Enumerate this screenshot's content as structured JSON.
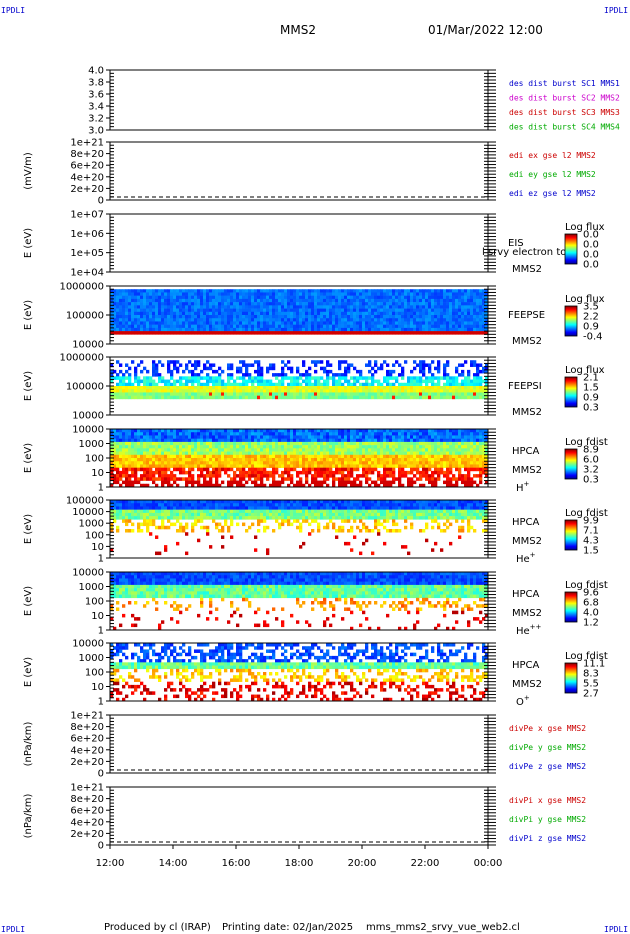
{
  "header": {
    "corner_left": "IPDLI",
    "corner_right": "IPDLI",
    "mission": "MMS2",
    "datetime": "01/Mar/2022 12:00"
  },
  "footer": {
    "produced_by": "Produced by cl (IRAP)",
    "printing_date": "Printing date: 02/Jan/2025",
    "filename": "mms_mms2_srvy_vue_web2.cl",
    "corner_left": "IPDLI",
    "corner_right": "IPDLI"
  },
  "chart_data": [
    {
      "type": "line",
      "panel": "des-dist",
      "yticks": [
        "4.0",
        "3.8",
        "3.6",
        "3.4",
        "3.2",
        "3.0"
      ],
      "ylabel": "",
      "series": [
        {
          "name": "des dist burst SC1 MMS1",
          "color": "#0000cc",
          "values": []
        },
        {
          "name": "des dist burst SC2 MMS2",
          "color": "#cc00cc",
          "values": []
        },
        {
          "name": "des dist burst SC3 MMS3",
          "color": "#cc0000",
          "values": []
        },
        {
          "name": "des dist burst SC4 MMS4",
          "color": "#00aa00",
          "values": []
        }
      ]
    },
    {
      "type": "line",
      "panel": "edi",
      "ylabel": "(mV/m)",
      "yticks": [
        "1e+21",
        "8e+20",
        "6e+20",
        "4e+20",
        "2e+20",
        "0"
      ],
      "series": [
        {
          "name": "edi ex gse l2 MMS2",
          "color": "#cc0000",
          "values": []
        },
        {
          "name": "edi ey gse l2 MMS2",
          "color": "#00aa00",
          "values": []
        },
        {
          "name": "edi ez gse l2 MMS2",
          "color": "#0000cc",
          "values": []
        }
      ]
    },
    {
      "type": "heatmap",
      "panel": "eis",
      "ylabel": "E (eV)",
      "yticks": [
        "1e+07",
        "1e+06",
        "1e+05",
        "1e+04"
      ],
      "labels": [
        "EIS",
        "MMS2"
      ],
      "overlay": "l srvy electron to",
      "colorbar": {
        "title": "Log flux",
        "ticks": [
          "0.0",
          "0.0",
          "0.0",
          "0.0"
        ]
      }
    },
    {
      "type": "heatmap",
      "panel": "feepse",
      "ylabel": "E (eV)",
      "yticks": [
        "1000000",
        "100000",
        "10000"
      ],
      "labels": [
        "FEEPSE",
        "MMS2"
      ],
      "colorbar": {
        "title": "Log flux",
        "ticks": [
          "3.5",
          "2.2",
          "0.9",
          "-0.4"
        ]
      }
    },
    {
      "type": "heatmap",
      "panel": "feepsi",
      "ylabel": "E (eV)",
      "yticks": [
        "1000000",
        "100000",
        "10000"
      ],
      "labels": [
        "FEEPSI",
        "MMS2"
      ],
      "colorbar": {
        "title": "Log flux",
        "ticks": [
          "2.1",
          "1.5",
          "0.9",
          "0.3"
        ]
      }
    },
    {
      "type": "heatmap",
      "panel": "hpca-h",
      "ylabel": "E (eV)",
      "yticks": [
        "10000",
        "1000",
        "100",
        "10",
        "1"
      ],
      "labels": [
        "HPCA",
        "MMS2",
        "H+"
      ],
      "colorbar": {
        "title": "Log fdist",
        "ticks": [
          "8.9",
          "6.0",
          "3.2",
          "0.3"
        ]
      }
    },
    {
      "type": "heatmap",
      "panel": "hpca-he",
      "ylabel": "E (eV)",
      "yticks": [
        "100000",
        "10000",
        "1000",
        "100",
        "10",
        "1"
      ],
      "labels": [
        "HPCA",
        "MMS2",
        "He+"
      ],
      "colorbar": {
        "title": "Log fdist",
        "ticks": [
          "9.9",
          "7.1",
          "4.3",
          "1.5"
        ]
      }
    },
    {
      "type": "heatmap",
      "panel": "hpca-hepp",
      "ylabel": "E (eV)",
      "yticks": [
        "10000",
        "1000",
        "100",
        "10",
        "1"
      ],
      "labels": [
        "HPCA",
        "MMS2",
        "He++"
      ],
      "colorbar": {
        "title": "Log fdist",
        "ticks": [
          "9.6",
          "6.8",
          "4.0",
          "1.2"
        ]
      }
    },
    {
      "type": "heatmap",
      "panel": "hpca-o",
      "ylabel": "E (eV)",
      "yticks": [
        "10000",
        "1000",
        "100",
        "10",
        "1"
      ],
      "labels": [
        "HPCA",
        "MMS2",
        "O+"
      ],
      "colorbar": {
        "title": "Log fdist",
        "ticks": [
          "11.1",
          "8.3",
          "5.5",
          "2.7"
        ]
      }
    },
    {
      "type": "line",
      "panel": "divpe",
      "ylabel": "(nPa/km)",
      "yticks": [
        "1e+21",
        "8e+20",
        "6e+20",
        "4e+20",
        "2e+20",
        "0"
      ],
      "series": [
        {
          "name": "divPe x gse MMS2",
          "color": "#cc0000",
          "values": []
        },
        {
          "name": "divPe y gse MMS2",
          "color": "#00aa00",
          "values": []
        },
        {
          "name": "divPe z gse MMS2",
          "color": "#0000cc",
          "values": []
        }
      ]
    },
    {
      "type": "line",
      "panel": "divpi",
      "ylabel": "(nPa/km)",
      "yticks": [
        "1e+21",
        "8e+20",
        "6e+20",
        "4e+20",
        "2e+20",
        "0"
      ],
      "series": [
        {
          "name": "divPi x gse MMS2",
          "color": "#cc0000",
          "values": []
        },
        {
          "name": "divPi y gse MMS2",
          "color": "#00aa00",
          "values": []
        },
        {
          "name": "divPi z gse MMS2",
          "color": "#0000cc",
          "values": []
        }
      ]
    }
  ],
  "xaxis": {
    "ticks": [
      "12:00",
      "14:00",
      "16:00",
      "18:00",
      "20:00",
      "22:00",
      "00:00"
    ]
  }
}
